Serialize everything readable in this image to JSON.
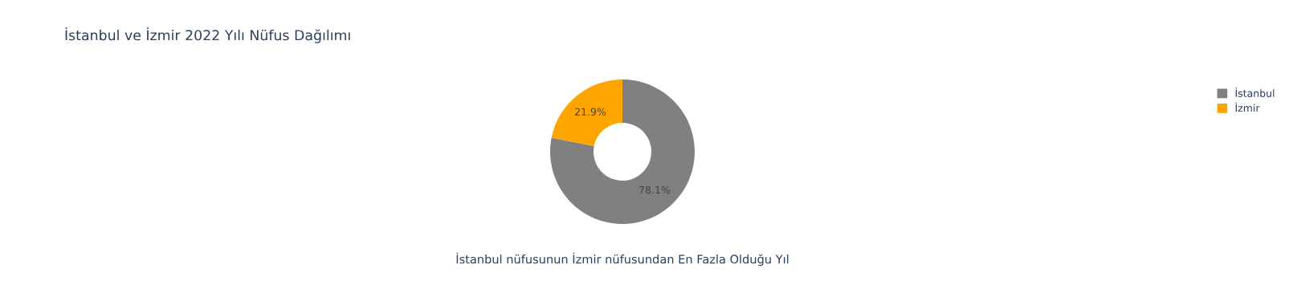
{
  "chart_data": {
    "type": "donut",
    "title": "İstanbul ve İzmir 2022 Yılı Nüfus Dağılımı",
    "categories": [
      "İstanbul",
      "İzmir"
    ],
    "values": [
      78.1,
      21.9
    ],
    "colors": [
      "#808080",
      "#ffa500"
    ],
    "value_labels": [
      "78.1%",
      "21.9%"
    ],
    "legend": "top right",
    "annotations": [
      "İstanbul nüfusunun İzmir nüfusundan En Fazla Olduğu Yıl"
    ]
  }
}
